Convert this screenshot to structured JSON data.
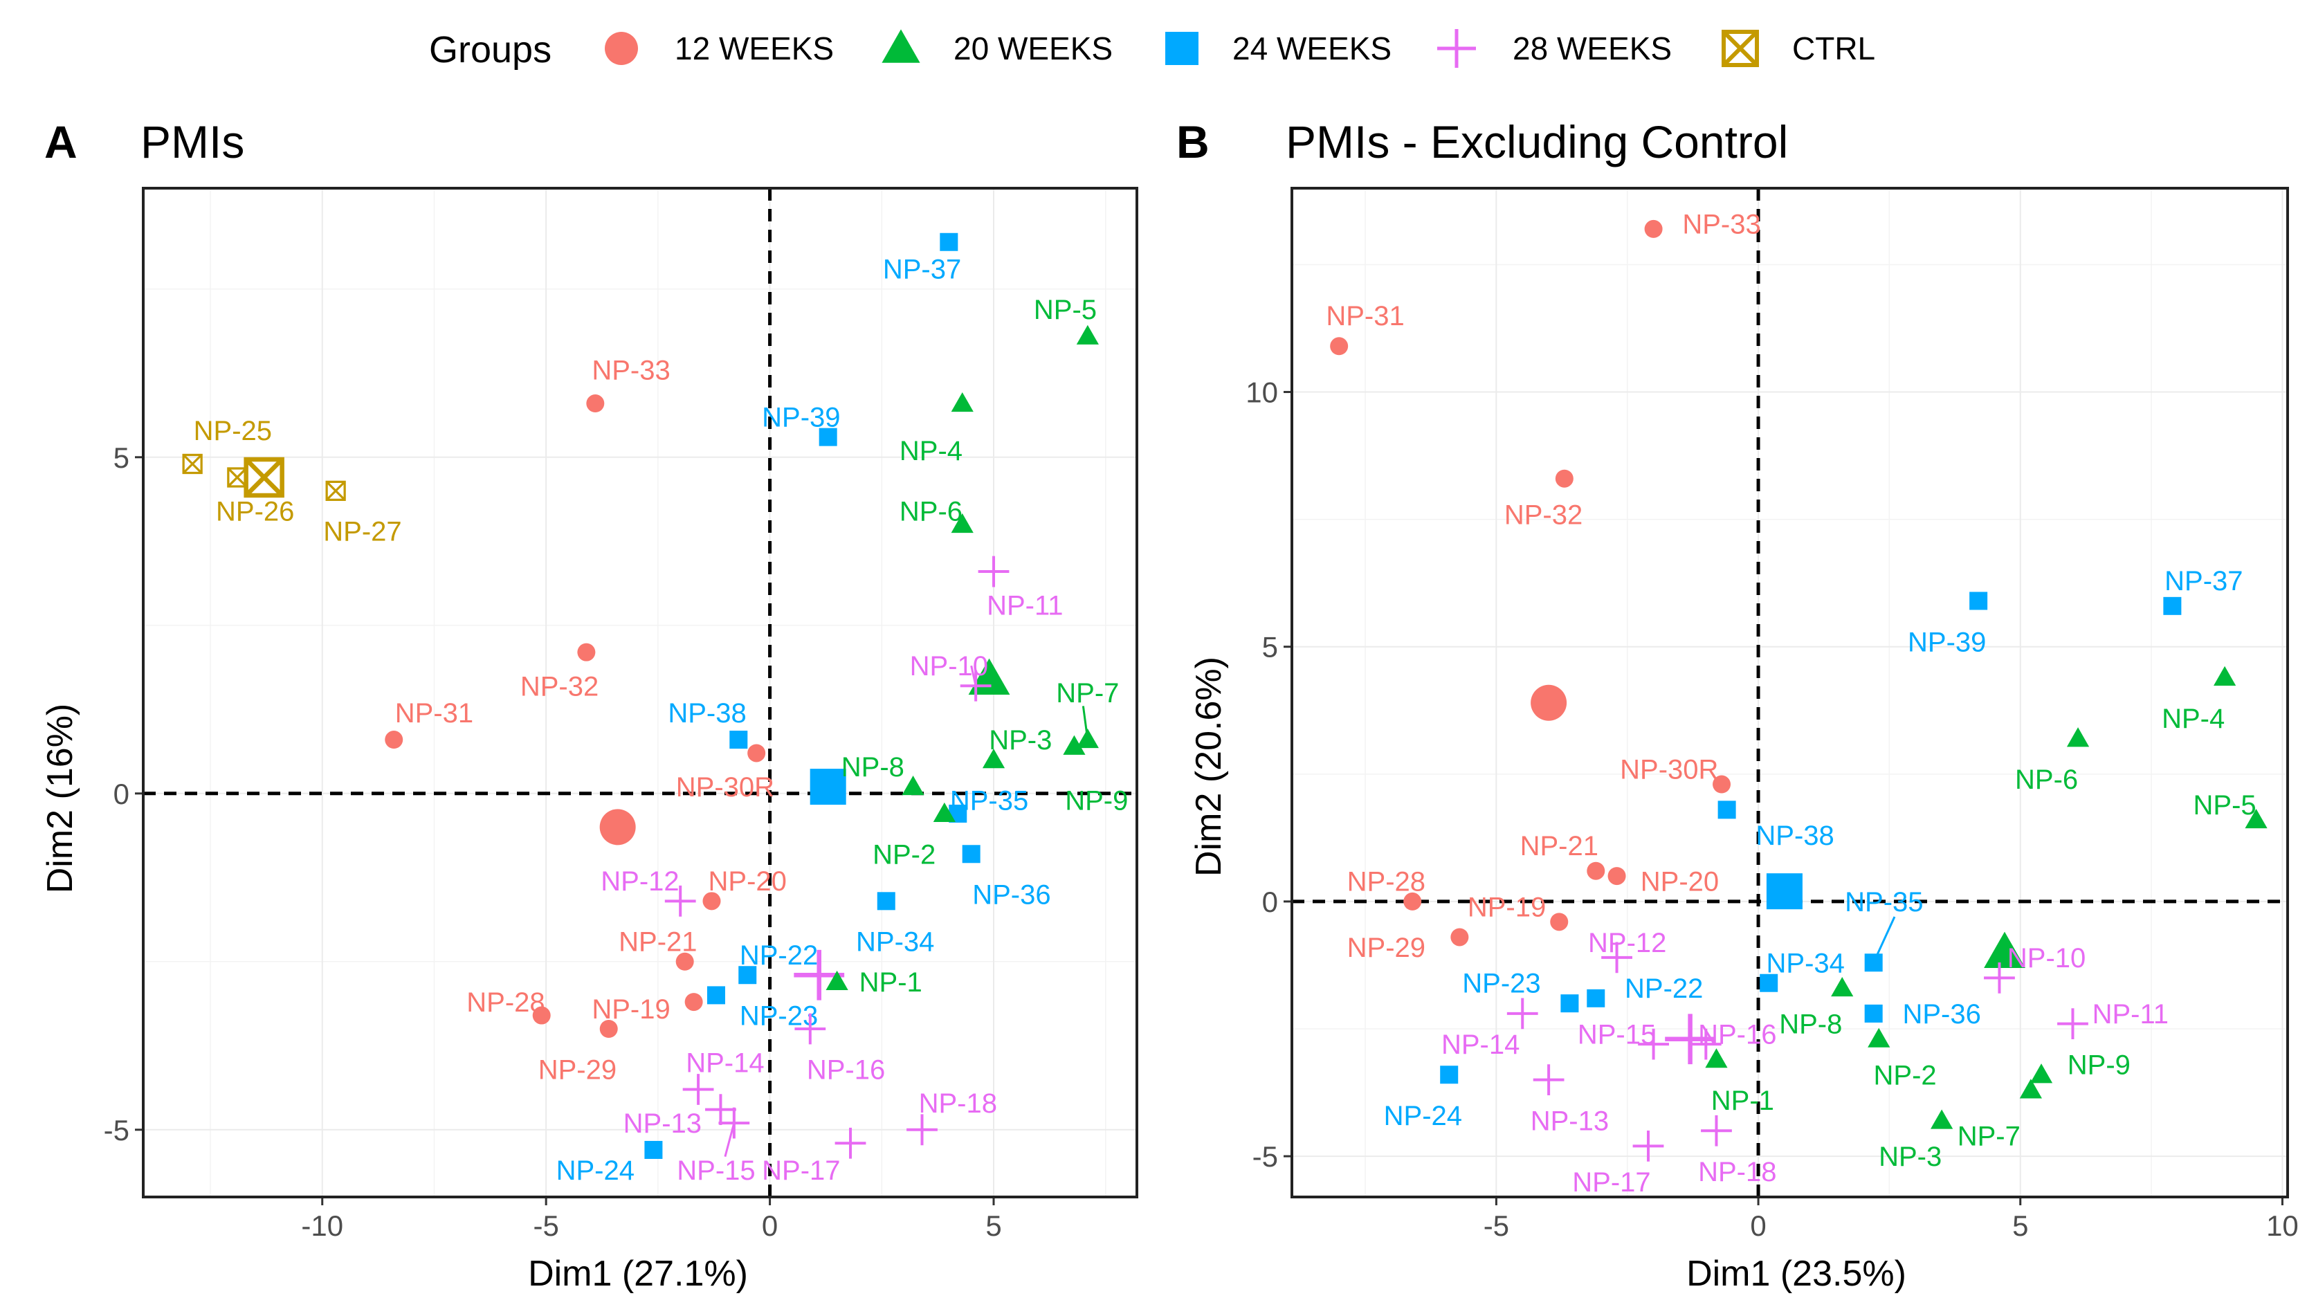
{
  "legend": {
    "title": "Groups",
    "entries": [
      {
        "key": "12W",
        "label": "12 WEEKS",
        "shape": "circle",
        "color": "#F8766D"
      },
      {
        "key": "20W",
        "label": "20 WEEKS",
        "shape": "triangle",
        "color": "#00BA38"
      },
      {
        "key": "24W",
        "label": "24 WEEKS",
        "shape": "square",
        "color": "#00A9FF"
      },
      {
        "key": "28W",
        "label": "28 WEEKS",
        "shape": "plus",
        "color": "#E76BF3"
      },
      {
        "key": "CTRL",
        "label": "CTRL",
        "shape": "boxcross",
        "color": "#C49A00"
      }
    ]
  },
  "chart_data": [
    {
      "type": "scatter",
      "panel": "A",
      "title": "PMIs",
      "xlabel": "Dim1 (27.1%)",
      "ylabel": "Dim2 (16%)",
      "xlim": [
        -14.0,
        8.2
      ],
      "ylim": [
        -6.0,
        9.0
      ],
      "xticks": [
        -10,
        -5,
        0,
        5
      ],
      "xtick_labels": [
        "-10",
        "-5",
        "0",
        "5"
      ],
      "yticks": [
        -5,
        0,
        5
      ],
      "ytick_labels": [
        "-5",
        "0",
        "5"
      ],
      "points": [
        {
          "label": "NP-37",
          "group": "24W",
          "x": 4.0,
          "y": 8.2,
          "lx": 3.4,
          "ly": 7.8,
          "anchor": "middle"
        },
        {
          "label": "NP-5",
          "group": "20W",
          "x": 7.1,
          "y": 6.8,
          "lx": 6.6,
          "ly": 7.2,
          "anchor": "middle"
        },
        {
          "label": "NP-39",
          "group": "24W",
          "x": 1.3,
          "y": 5.3,
          "lx": 0.7,
          "ly": 5.6,
          "anchor": "middle"
        },
        {
          "label": "NP-4",
          "group": "20W",
          "x": 4.3,
          "y": 5.8,
          "lx": 3.6,
          "ly": 5.1,
          "anchor": "middle"
        },
        {
          "label": "NP-6",
          "group": "20W",
          "x": 4.3,
          "y": 4.0,
          "lx": 3.6,
          "ly": 4.2,
          "anchor": "middle"
        },
        {
          "label": "NP-33",
          "group": "12W",
          "x": -3.9,
          "y": 5.8,
          "lx": -3.1,
          "ly": 6.3,
          "anchor": "middle"
        },
        {
          "label": "NP-25",
          "group": "CTRL",
          "x": -12.9,
          "y": 4.9,
          "lx": -12.0,
          "ly": 5.4,
          "anchor": "middle"
        },
        {
          "label": "NP-26",
          "group": "CTRL",
          "x": -11.9,
          "y": 4.7,
          "lx": -11.5,
          "ly": 4.2,
          "anchor": "middle"
        },
        {
          "label": "NP-27",
          "group": "CTRL",
          "x": -9.7,
          "y": 4.5,
          "lx": -9.1,
          "ly": 3.9,
          "anchor": "middle"
        },
        {
          "label": "NP-11",
          "group": "28W",
          "x": 5.0,
          "y": 3.3,
          "lx": 5.7,
          "ly": 2.8,
          "anchor": "middle"
        },
        {
          "label": "NP-10",
          "group": "28W",
          "x": 4.6,
          "y": 1.6,
          "lx": 4.0,
          "ly": 1.9,
          "anchor": "middle"
        },
        {
          "label": "NP-7",
          "group": "20W",
          "x": 7.1,
          "y": 0.8,
          "lx": 7.1,
          "ly": 1.5,
          "anchor": "middle"
        },
        {
          "label": "NP-9",
          "group": "20W",
          "x": 6.8,
          "y": 0.7,
          "lx": 7.3,
          "ly": -0.1,
          "anchor": "middle"
        },
        {
          "label": "NP-3",
          "group": "20W",
          "x": 5.0,
          "y": 0.5,
          "lx": 5.6,
          "ly": 0.8,
          "anchor": "middle"
        },
        {
          "label": "NP-32",
          "group": "12W",
          "x": -4.1,
          "y": 2.1,
          "lx": -4.7,
          "ly": 1.6,
          "anchor": "middle"
        },
        {
          "label": "NP-31",
          "group": "12W",
          "x": -8.4,
          "y": 0.8,
          "lx": -7.5,
          "ly": 1.2,
          "anchor": "middle"
        },
        {
          "label": "NP-38",
          "group": "24W",
          "x": -0.7,
          "y": 0.8,
          "lx": -1.4,
          "ly": 1.2,
          "anchor": "middle"
        },
        {
          "label": "NP-30R",
          "group": "12W",
          "x": -0.3,
          "y": 0.6,
          "lx": -1.0,
          "ly": 0.1,
          "anchor": "middle"
        },
        {
          "label": "NP-8",
          "group": "20W",
          "x": 3.2,
          "y": 0.1,
          "lx": 2.3,
          "ly": 0.4,
          "anchor": "middle"
        },
        {
          "label": "NP-35",
          "group": "24W",
          "x": 4.2,
          "y": -0.3,
          "lx": 4.9,
          "ly": -0.1,
          "anchor": "middle"
        },
        {
          "label": "NP-2",
          "group": "20W",
          "x": 3.9,
          "y": -0.3,
          "lx": 3.0,
          "ly": -0.9,
          "anchor": "middle"
        },
        {
          "label": "NP-36",
          "group": "24W",
          "x": 4.5,
          "y": -0.9,
          "lx": 5.4,
          "ly": -1.5,
          "anchor": "middle"
        },
        {
          "label": "NP-34",
          "group": "24W",
          "x": 2.6,
          "y": -1.6,
          "lx": 2.8,
          "ly": -2.2,
          "anchor": "middle"
        },
        {
          "label": "NP-12",
          "group": "28W",
          "x": -2.0,
          "y": -1.6,
          "lx": -2.9,
          "ly": -1.3,
          "anchor": "middle"
        },
        {
          "label": "NP-20",
          "group": "12W",
          "x": -1.3,
          "y": -1.6,
          "lx": -0.5,
          "ly": -1.3,
          "anchor": "middle"
        },
        {
          "label": "NP-21",
          "group": "12W",
          "x": -1.9,
          "y": -2.5,
          "lx": -2.5,
          "ly": -2.2,
          "anchor": "middle"
        },
        {
          "label": "NP-22",
          "group": "24W",
          "x": -0.5,
          "y": -2.7,
          "lx": 0.2,
          "ly": -2.4,
          "anchor": "middle"
        },
        {
          "label": "NP-1",
          "group": "20W",
          "x": 1.5,
          "y": -2.8,
          "lx": 2.7,
          "ly": -2.8,
          "anchor": "middle"
        },
        {
          "label": "NP-23",
          "group": "24W",
          "x": -1.2,
          "y": -3.0,
          "lx": 0.2,
          "ly": -3.3,
          "anchor": "middle"
        },
        {
          "label": "NP-28",
          "group": "12W",
          "x": -5.1,
          "y": -3.3,
          "lx": -5.9,
          "ly": -3.1,
          "anchor": "middle"
        },
        {
          "label": "NP-19",
          "group": "12W",
          "x": -1.7,
          "y": -3.1,
          "lx": -3.1,
          "ly": -3.2,
          "anchor": "middle"
        },
        {
          "label": "NP-29",
          "group": "12W",
          "x": -3.6,
          "y": -3.5,
          "lx": -4.3,
          "ly": -4.1,
          "anchor": "middle"
        },
        {
          "label": "NP-14",
          "group": "28W",
          "x": -1.6,
          "y": -4.4,
          "lx": -1.0,
          "ly": -4.0,
          "anchor": "middle"
        },
        {
          "label": "NP-16",
          "group": "28W",
          "x": 0.9,
          "y": -3.5,
          "lx": 1.7,
          "ly": -4.1,
          "anchor": "middle"
        },
        {
          "label": "NP-13",
          "group": "28W",
          "x": -1.1,
          "y": -4.7,
          "lx": -2.4,
          "ly": -4.9,
          "anchor": "middle"
        },
        {
          "label": "NP-15",
          "group": "28W",
          "x": -0.8,
          "y": -4.9,
          "lx": -1.2,
          "ly": -5.6,
          "anchor": "middle"
        },
        {
          "label": "NP-17",
          "group": "28W",
          "x": 1.8,
          "y": -5.2,
          "lx": 0.7,
          "ly": -5.6,
          "anchor": "middle"
        },
        {
          "label": "NP-18",
          "group": "28W",
          "x": 3.4,
          "y": -5.0,
          "lx": 4.2,
          "ly": -4.6,
          "anchor": "middle"
        },
        {
          "label": "NP-24",
          "group": "24W",
          "x": -2.6,
          "y": -5.3,
          "lx": -3.9,
          "ly": -5.6,
          "anchor": "middle"
        }
      ],
      "centroids": [
        {
          "group": "CTRL",
          "x": -11.3,
          "y": 4.7
        },
        {
          "group": "12W",
          "x": -3.4,
          "y": -0.5
        },
        {
          "group": "24W",
          "x": 1.3,
          "y": 0.1
        },
        {
          "group": "20W",
          "x": 4.9,
          "y": 1.7
        },
        {
          "group": "28W",
          "x": 1.1,
          "y": -2.7
        }
      ],
      "leader_lines": [
        {
          "label": "NP-7",
          "x1": 7.1,
          "y1": 0.8,
          "x2": 7.0,
          "y2": 1.3
        },
        {
          "label": "NP-10",
          "x1": 4.6,
          "y1": 1.6,
          "x2": 4.5,
          "y2": 1.9
        },
        {
          "label": "NP-15",
          "x1": -0.8,
          "y1": -4.9,
          "x2": -1.0,
          "y2": -5.4
        }
      ]
    },
    {
      "type": "scatter",
      "panel": "B",
      "title": "PMIs - Excluding Control",
      "xlabel": "Dim1 (23.5%)",
      "ylabel": "Dim2 (20.6%)",
      "xlim": [
        -8.9,
        10.1
      ],
      "ylim": [
        -5.8,
        14.0
      ],
      "xticks": [
        -5,
        0,
        5,
        10
      ],
      "xtick_labels": [
        "-5",
        "0",
        "5",
        "10"
      ],
      "yticks": [
        -5,
        0,
        5,
        10
      ],
      "ytick_labels": [
        "-5",
        "0",
        "5",
        "10"
      ],
      "points": [
        {
          "label": "NP-33",
          "group": "12W",
          "x": -2.0,
          "y": 13.2,
          "lx": -0.7,
          "ly": 13.3,
          "anchor": "middle"
        },
        {
          "label": "NP-31",
          "group": "12W",
          "x": -8.0,
          "y": 10.9,
          "lx": -7.5,
          "ly": 11.5,
          "anchor": "middle"
        },
        {
          "label": "NP-32",
          "group": "12W",
          "x": -3.7,
          "y": 8.3,
          "lx": -4.1,
          "ly": 7.6,
          "anchor": "middle"
        },
        {
          "label": "NP-39",
          "group": "24W",
          "x": 4.2,
          "y": 5.9,
          "lx": 3.6,
          "ly": 5.1,
          "anchor": "middle"
        },
        {
          "label": "NP-37",
          "group": "24W",
          "x": 7.9,
          "y": 5.8,
          "lx": 8.5,
          "ly": 6.3,
          "anchor": "middle"
        },
        {
          "label": "NP-4",
          "group": "20W",
          "x": 8.9,
          "y": 4.4,
          "lx": 8.3,
          "ly": 3.6,
          "anchor": "middle"
        },
        {
          "label": "NP-6",
          "group": "20W",
          "x": 6.1,
          "y": 3.2,
          "lx": 5.5,
          "ly": 2.4,
          "anchor": "middle"
        },
        {
          "label": "NP-5",
          "group": "20W",
          "x": 9.5,
          "y": 1.6,
          "lx": 8.9,
          "ly": 1.9,
          "anchor": "middle"
        },
        {
          "label": "NP-30R",
          "group": "12W",
          "x": -0.7,
          "y": 2.3,
          "lx": -1.7,
          "ly": 2.6,
          "anchor": "middle"
        },
        {
          "label": "NP-38",
          "group": "24W",
          "x": -0.6,
          "y": 1.8,
          "lx": 0.7,
          "ly": 1.3,
          "anchor": "middle"
        },
        {
          "label": "NP-21",
          "group": "12W",
          "x": -3.1,
          "y": 0.6,
          "lx": -3.8,
          "ly": 1.1,
          "anchor": "middle"
        },
        {
          "label": "NP-20",
          "group": "12W",
          "x": -2.7,
          "y": 0.5,
          "lx": -1.5,
          "ly": 0.4,
          "anchor": "middle"
        },
        {
          "label": "NP-28",
          "group": "12W",
          "x": -6.6,
          "y": 0.0,
          "lx": -7.1,
          "ly": 0.4,
          "anchor": "middle"
        },
        {
          "label": "NP-19",
          "group": "12W",
          "x": -3.8,
          "y": -0.4,
          "lx": -4.8,
          "ly": -0.1,
          "anchor": "middle"
        },
        {
          "label": "NP-29",
          "group": "12W",
          "x": -5.7,
          "y": -0.7,
          "lx": -7.1,
          "ly": -0.9,
          "anchor": "middle"
        },
        {
          "label": "NP-12",
          "group": "28W",
          "x": -2.7,
          "y": -1.1,
          "lx": -2.5,
          "ly": -0.8,
          "anchor": "middle"
        },
        {
          "label": "NP-35",
          "group": "24W",
          "x": 2.2,
          "y": -1.2,
          "lx": 2.4,
          "ly": 0.0,
          "anchor": "middle"
        },
        {
          "label": "NP-34",
          "group": "24W",
          "x": 0.2,
          "y": -1.6,
          "lx": 0.9,
          "ly": -1.2,
          "anchor": "middle"
        },
        {
          "label": "NP-10",
          "group": "28W",
          "x": 4.6,
          "y": -1.5,
          "lx": 5.5,
          "ly": -1.1,
          "anchor": "middle"
        },
        {
          "label": "NP-23",
          "group": "24W",
          "x": -3.6,
          "y": -2.0,
          "lx": -4.9,
          "ly": -1.6,
          "anchor": "middle"
        },
        {
          "label": "NP-22",
          "group": "24W",
          "x": -3.1,
          "y": -1.9,
          "lx": -1.8,
          "ly": -1.7,
          "anchor": "middle"
        },
        {
          "label": "NP-8",
          "group": "20W",
          "x": 1.6,
          "y": -1.7,
          "lx": 1.0,
          "ly": -2.4,
          "anchor": "middle"
        },
        {
          "label": "NP-36",
          "group": "24W",
          "x": 2.2,
          "y": -2.2,
          "lx": 3.5,
          "ly": -2.2,
          "anchor": "middle"
        },
        {
          "label": "NP-11",
          "group": "28W",
          "x": 6.0,
          "y": -2.4,
          "lx": 7.1,
          "ly": -2.2,
          "anchor": "middle"
        },
        {
          "label": "NP-15",
          "group": "28W",
          "x": -2.0,
          "y": -2.8,
          "lx": -2.7,
          "ly": -2.6,
          "anchor": "middle"
        },
        {
          "label": "NP-16",
          "group": "28W",
          "x": -1.0,
          "y": -2.8,
          "lx": -0.4,
          "ly": -2.6,
          "anchor": "middle"
        },
        {
          "label": "NP-14",
          "group": "28W",
          "x": -4.5,
          "y": -2.2,
          "lx": -5.3,
          "ly": -2.8,
          "anchor": "middle"
        },
        {
          "label": "NP-2",
          "group": "20W",
          "x": 2.3,
          "y": -2.7,
          "lx": 2.8,
          "ly": -3.4,
          "anchor": "middle"
        },
        {
          "label": "NP-9",
          "group": "20W",
          "x": 5.4,
          "y": -3.4,
          "lx": 6.5,
          "ly": -3.2,
          "anchor": "middle"
        },
        {
          "label": "NP-1",
          "group": "20W",
          "x": -0.8,
          "y": -3.1,
          "lx": -0.3,
          "ly": -3.9,
          "anchor": "middle"
        },
        {
          "label": "NP-24",
          "group": "24W",
          "x": -5.9,
          "y": -3.4,
          "lx": -6.4,
          "ly": -4.2,
          "anchor": "middle"
        },
        {
          "label": "NP-13",
          "group": "28W",
          "x": -4.0,
          "y": -3.5,
          "lx": -3.6,
          "ly": -4.3,
          "anchor": "middle"
        },
        {
          "label": "NP-7",
          "group": "20W",
          "x": 5.2,
          "y": -3.7,
          "lx": 4.4,
          "ly": -4.6,
          "anchor": "middle"
        },
        {
          "label": "NP-3",
          "group": "20W",
          "x": 3.5,
          "y": -4.3,
          "lx": 2.9,
          "ly": -5.0,
          "anchor": "middle"
        },
        {
          "label": "NP-18",
          "group": "28W",
          "x": -0.8,
          "y": -4.5,
          "lx": -0.4,
          "ly": -5.3,
          "anchor": "middle"
        },
        {
          "label": "NP-17",
          "group": "28W",
          "x": -2.1,
          "y": -4.8,
          "lx": -2.8,
          "ly": -5.5,
          "anchor": "middle"
        }
      ],
      "centroids": [
        {
          "group": "12W",
          "x": -4.0,
          "y": 3.9
        },
        {
          "group": "24W",
          "x": 0.5,
          "y": 0.2
        },
        {
          "group": "20W",
          "x": 4.7,
          "y": -1.0
        },
        {
          "group": "28W",
          "x": -1.3,
          "y": -2.7
        }
      ],
      "leader_lines": [
        {
          "label": "NP-35",
          "x1": 2.2,
          "y1": -1.2,
          "x2": 2.6,
          "y2": -0.3
        }
      ]
    }
  ]
}
